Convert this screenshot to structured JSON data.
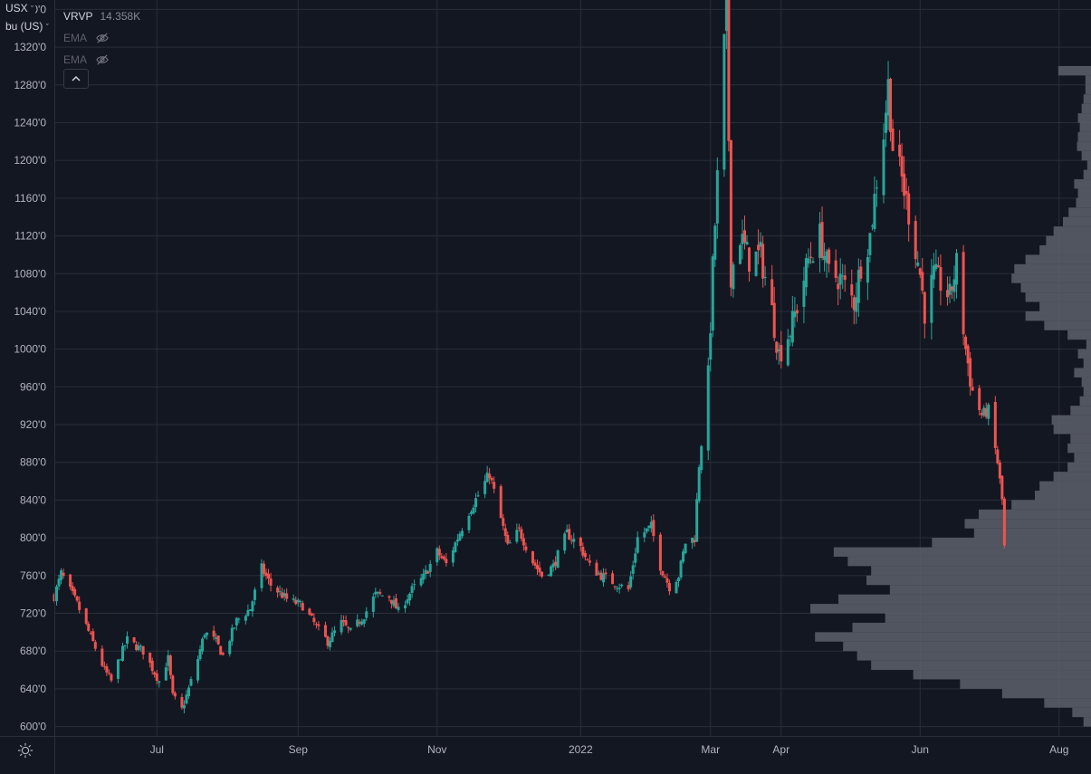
{
  "header": {
    "currency_label": "USX",
    "unit_label": "bu (US)",
    "indicators": [
      {
        "name": "VRVP",
        "value": "14.358K"
      },
      {
        "name": "EMA",
        "visible": false
      },
      {
        "name": "EMA",
        "visible": false
      }
    ]
  },
  "colors": {
    "background": "#131722",
    "up": "#26a69a",
    "down": "#ef5350",
    "grid": "#2a2e39",
    "volume_profile": "#5d606b",
    "text": "#b2b5be"
  },
  "icons": {
    "visibility": "eye-off-icon",
    "collapse": "chevron-up-icon",
    "settings": "gear-icon"
  },
  "chart_data": {
    "type": "candlestick",
    "y_axis": {
      "min": 590,
      "max": 1370,
      "ticks": [
        600,
        640,
        680,
        720,
        760,
        800,
        840,
        880,
        920,
        960,
        1000,
        1040,
        1080,
        1120,
        1160,
        1200,
        1240,
        1280,
        1320,
        1360
      ],
      "tick_labels": [
        "600'0",
        "640'0",
        "680'0",
        "720'0",
        "760'0",
        "800'0",
        "840'0",
        "880'0",
        "920'0",
        "960'0",
        "1000'0",
        "1040'0",
        "1080'0",
        "1120'0",
        "1160'0",
        "1200'0",
        "1240'0",
        "1280'0",
        "1320'0",
        "1360'0"
      ]
    },
    "x_axis": {
      "start": "2021-05-17",
      "end": "2022-08-15",
      "ticks": [
        {
          "date": "2021-07-01",
          "label": "Jul"
        },
        {
          "date": "2021-09-01",
          "label": "Sep"
        },
        {
          "date": "2021-11-01",
          "label": "Nov"
        },
        {
          "date": "2022-01-03",
          "label": "2022"
        },
        {
          "date": "2022-03-01",
          "label": "Mar"
        },
        {
          "date": "2022-04-01",
          "label": "Apr"
        },
        {
          "date": "2022-06-01",
          "label": "Jun"
        },
        {
          "date": "2022-08-01",
          "label": "Aug"
        }
      ]
    },
    "price_path": [
      [
        "2021-05-17",
        738
      ],
      [
        "2021-05-20",
        762
      ],
      [
        "2021-05-27",
        730
      ],
      [
        "2021-06-02",
        695
      ],
      [
        "2021-06-08",
        660
      ],
      [
        "2021-06-11",
        648
      ],
      [
        "2021-06-15",
        675
      ],
      [
        "2021-06-18",
        692
      ],
      [
        "2021-06-25",
        680
      ],
      [
        "2021-07-02",
        648
      ],
      [
        "2021-07-06",
        672
      ],
      [
        "2021-07-08",
        632
      ],
      [
        "2021-07-12",
        618
      ],
      [
        "2021-07-15",
        640
      ],
      [
        "2021-07-19",
        672
      ],
      [
        "2021-07-22",
        700
      ],
      [
        "2021-07-27",
        690
      ],
      [
        "2021-07-30",
        675
      ],
      [
        "2021-08-05",
        712
      ],
      [
        "2021-08-11",
        725
      ],
      [
        "2021-08-16",
        768
      ],
      [
        "2021-08-20",
        750
      ],
      [
        "2021-08-27",
        735
      ],
      [
        "2021-09-03",
        728
      ],
      [
        "2021-09-10",
        702
      ],
      [
        "2021-09-14",
        690
      ],
      [
        "2021-09-20",
        710
      ],
      [
        "2021-09-24",
        700
      ],
      [
        "2021-09-30",
        718
      ],
      [
        "2021-10-05",
        740
      ],
      [
        "2021-10-11",
        738
      ],
      [
        "2021-10-15",
        722
      ],
      [
        "2021-10-21",
        745
      ],
      [
        "2021-10-26",
        758
      ],
      [
        "2021-11-01",
        785
      ],
      [
        "2021-11-05",
        772
      ],
      [
        "2021-11-10",
        800
      ],
      [
        "2021-11-15",
        828
      ],
      [
        "2021-11-19",
        845
      ],
      [
        "2021-11-24",
        868
      ],
      [
        "2021-11-29",
        820
      ],
      [
        "2021-12-02",
        790
      ],
      [
        "2021-12-07",
        808
      ],
      [
        "2021-12-13",
        775
      ],
      [
        "2021-12-17",
        760
      ],
      [
        "2021-12-22",
        770
      ],
      [
        "2021-12-28",
        805
      ],
      [
        "2022-01-03",
        790
      ],
      [
        "2022-01-07",
        770
      ],
      [
        "2022-01-12",
        760
      ],
      [
        "2022-01-18",
        752
      ],
      [
        "2022-01-24",
        745
      ],
      [
        "2022-01-28",
        800
      ],
      [
        "2022-02-03",
        812
      ],
      [
        "2022-02-07",
        770
      ],
      [
        "2022-02-11",
        748
      ],
      [
        "2022-02-15",
        760
      ],
      [
        "2022-02-18",
        795
      ],
      [
        "2022-02-22",
        800
      ],
      [
        "2022-02-24",
        878
      ],
      [
        "2022-02-28",
        970
      ],
      [
        "2022-03-02",
        1085
      ],
      [
        "2022-03-04",
        1180
      ],
      [
        "2022-03-08",
        1368
      ],
      [
        "2022-03-10",
        1080
      ],
      [
        "2022-03-14",
        1120
      ],
      [
        "2022-03-18",
        1095
      ],
      [
        "2022-03-23",
        1100
      ],
      [
        "2022-03-28",
        1040
      ],
      [
        "2022-03-31",
        995
      ],
      [
        "2022-04-05",
        1020
      ],
      [
        "2022-04-08",
        1045
      ],
      [
        "2022-04-13",
        1095
      ],
      [
        "2022-04-18",
        1120
      ],
      [
        "2022-04-22",
        1080
      ],
      [
        "2022-04-27",
        1075
      ],
      [
        "2022-05-03",
        1050
      ],
      [
        "2022-05-06",
        1090
      ],
      [
        "2022-05-10",
        1120
      ],
      [
        "2022-05-13",
        1180
      ],
      [
        "2022-05-16",
        1230
      ],
      [
        "2022-05-18",
        1280
      ],
      [
        "2022-05-20",
        1215
      ],
      [
        "2022-05-24",
        1180
      ],
      [
        "2022-05-27",
        1145
      ],
      [
        "2022-06-01",
        1080
      ],
      [
        "2022-06-03",
        1040
      ],
      [
        "2022-06-07",
        1078
      ],
      [
        "2022-06-10",
        1070
      ],
      [
        "2022-06-14",
        1055
      ],
      [
        "2022-06-17",
        1090
      ],
      [
        "2022-06-21",
        1000
      ],
      [
        "2022-06-24",
        955
      ],
      [
        "2022-06-28",
        930
      ],
      [
        "2022-07-01",
        935
      ],
      [
        "2022-07-05",
        880
      ],
      [
        "2022-07-07",
        840
      ],
      [
        "2022-07-08",
        790
      ]
    ],
    "volume_profile": [
      [
        605,
        8
      ],
      [
        615,
        20
      ],
      [
        625,
        50
      ],
      [
        635,
        95
      ],
      [
        645,
        140
      ],
      [
        655,
        190
      ],
      [
        665,
        235
      ],
      [
        675,
        250
      ],
      [
        685,
        265
      ],
      [
        695,
        295
      ],
      [
        705,
        255
      ],
      [
        715,
        220
      ],
      [
        725,
        300
      ],
      [
        735,
        270
      ],
      [
        745,
        215
      ],
      [
        755,
        240
      ],
      [
        765,
        235
      ],
      [
        775,
        260
      ],
      [
        785,
        275
      ],
      [
        795,
        170
      ],
      [
        805,
        125
      ],
      [
        815,
        135
      ],
      [
        825,
        120
      ],
      [
        835,
        85
      ],
      [
        845,
        60
      ],
      [
        855,
        55
      ],
      [
        865,
        40
      ],
      [
        875,
        25
      ],
      [
        885,
        18
      ],
      [
        895,
        25
      ],
      [
        905,
        22
      ],
      [
        915,
        40
      ],
      [
        925,
        42
      ],
      [
        935,
        22
      ],
      [
        945,
        12
      ],
      [
        955,
        8
      ],
      [
        965,
        10
      ],
      [
        975,
        18
      ],
      [
        985,
        8
      ],
      [
        995,
        14
      ],
      [
        1005,
        5
      ],
      [
        1015,
        25
      ],
      [
        1025,
        50
      ],
      [
        1035,
        70
      ],
      [
        1045,
        55
      ],
      [
        1055,
        70
      ],
      [
        1065,
        75
      ],
      [
        1075,
        85
      ],
      [
        1085,
        82
      ],
      [
        1095,
        70
      ],
      [
        1105,
        55
      ],
      [
        1115,
        48
      ],
      [
        1125,
        40
      ],
      [
        1135,
        30
      ],
      [
        1145,
        24
      ],
      [
        1155,
        16
      ],
      [
        1165,
        14
      ],
      [
        1175,
        18
      ],
      [
        1185,
        8
      ],
      [
        1195,
        4
      ],
      [
        1205,
        10
      ],
      [
        1215,
        15
      ],
      [
        1225,
        14
      ],
      [
        1235,
        12
      ],
      [
        1245,
        14
      ],
      [
        1255,
        10
      ],
      [
        1265,
        8
      ],
      [
        1275,
        6
      ],
      [
        1285,
        6
      ],
      [
        1295,
        35
      ]
    ]
  }
}
